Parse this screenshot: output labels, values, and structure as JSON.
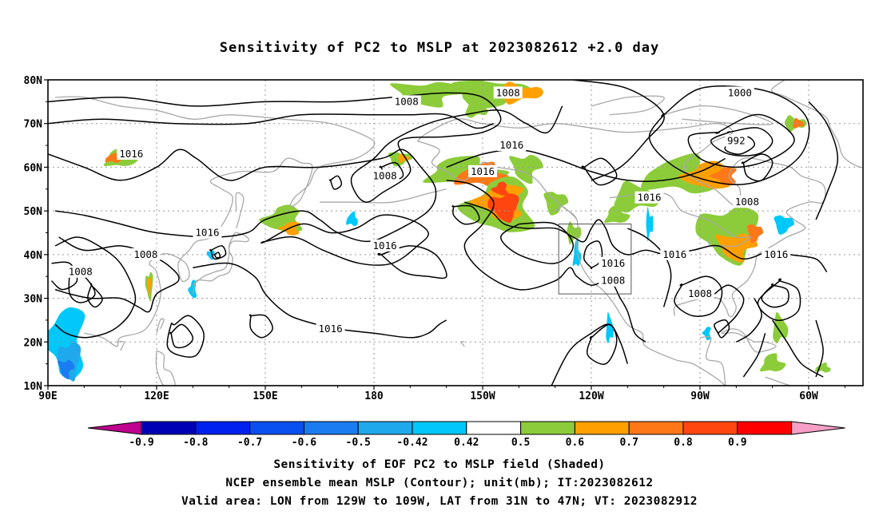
{
  "title": "Sensitivity of PC2 to MSLP at 2023082612 +2.0 day",
  "captions": [
    "Sensitivity of EOF PC2 to MSLP field (Shaded)",
    "NCEP ensemble mean MSLP (Contour); unit(mb); IT:2023082612",
    "Valid area: LON from 129W to 109W, LAT from 31N to 47N; VT: 2023082912"
  ],
  "map": {
    "lat_ticks": [
      "80N",
      "70N",
      "60N",
      "50N",
      "40N",
      "30N",
      "20N",
      "10N"
    ],
    "lon_ticks": [
      "90E",
      "120E",
      "150E",
      "180",
      "150W",
      "120W",
      "90W",
      "60W"
    ],
    "valid_area": {
      "lon_min": -129,
      "lon_max": -109,
      "lat_min": 31,
      "lat_max": 47
    },
    "contour_labels": [
      {
        "text": "1008",
        "lon": -171,
        "lat": 75
      },
      {
        "text": "1008",
        "lon": -143,
        "lat": 77
      },
      {
        "text": "1000",
        "lon": -79,
        "lat": 77
      },
      {
        "text": "1016",
        "lon": 113,
        "lat": 63
      },
      {
        "text": "1008",
        "lon": -177,
        "lat": 58
      },
      {
        "text": "1016",
        "lon": -142,
        "lat": 65
      },
      {
        "text": "1016",
        "lon": -150,
        "lat": 59
      },
      {
        "text": "992",
        "lon": -80,
        "lat": 66
      },
      {
        "text": "1016",
        "lon": -104,
        "lat": 53
      },
      {
        "text": "1008",
        "lon": -77,
        "lat": 52
      },
      {
        "text": "1016",
        "lon": 134,
        "lat": 45
      },
      {
        "text": "1016",
        "lon": -177,
        "lat": 42
      },
      {
        "text": "1008",
        "lon": 117,
        "lat": 40
      },
      {
        "text": "1008",
        "lon": 99,
        "lat": 36
      },
      {
        "text": "1016",
        "lon": -114,
        "lat": 38
      },
      {
        "text": "1008",
        "lon": -114,
        "lat": 34
      },
      {
        "text": "1016",
        "lon": -97,
        "lat": 40
      },
      {
        "text": "1016",
        "lon": -69,
        "lat": 40
      },
      {
        "text": "1008",
        "lon": -90,
        "lat": 31
      },
      {
        "text": "1016",
        "lon": -192,
        "lat": 23
      }
    ]
  },
  "colorbar": {
    "labels": [
      "-0.9",
      "-0.8",
      "-0.7",
      "-0.6",
      "-0.5",
      "-0.42",
      "0.42",
      "0.5",
      "0.6",
      "0.7",
      "0.8",
      "0.9"
    ],
    "colors": [
      "#c0008f",
      "#0000b4",
      "#0020f0",
      "#0a50f0",
      "#1a7cf0",
      "#20a8ec",
      "#00c8f8",
      "#ffffff",
      "#8ccc3a",
      "#ffa000",
      "#ff7818",
      "#ff4610",
      "#ff0000",
      "#f59fc6"
    ]
  }
}
